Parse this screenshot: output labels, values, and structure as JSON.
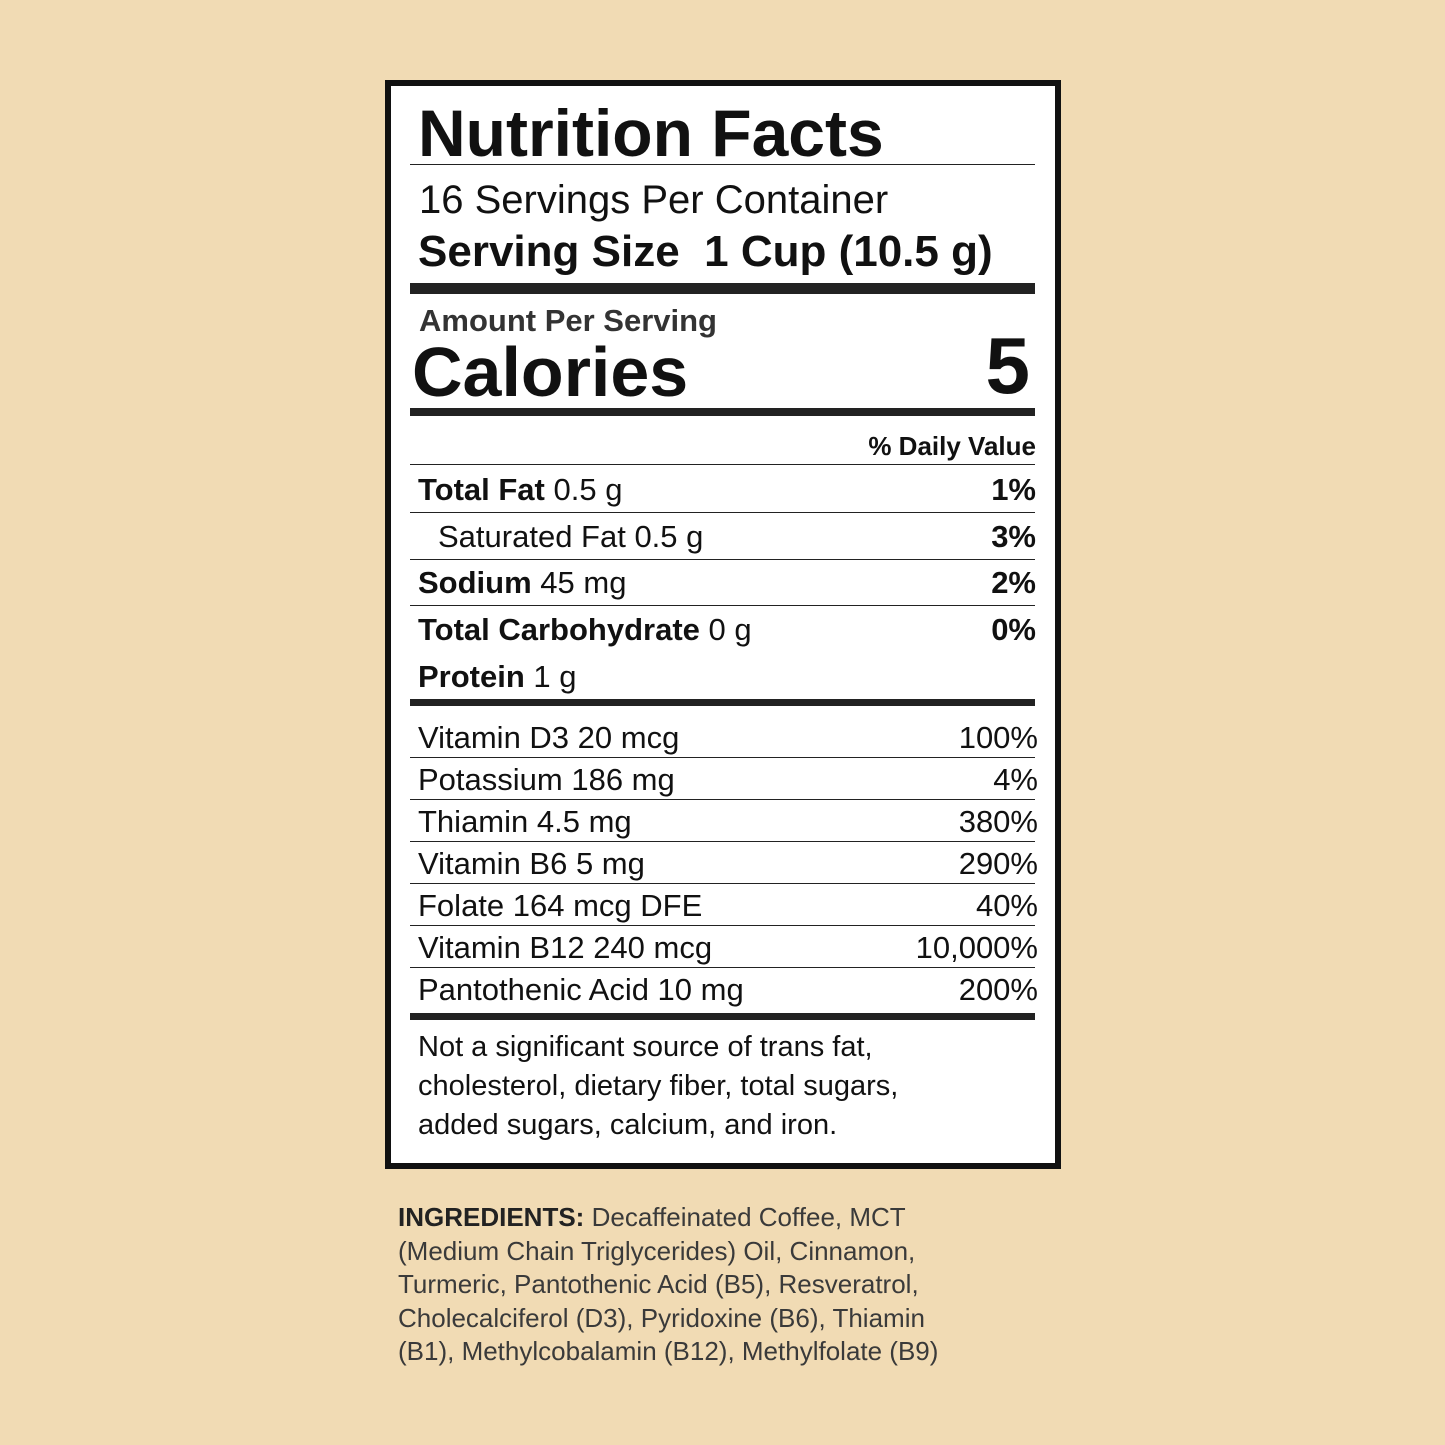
{
  "label": {
    "title": "Nutrition Facts",
    "servings_per_container": "16 Servings Per Container",
    "serving_size": {
      "label": "Serving Size",
      "value": "1 Cup (10.5 g)"
    },
    "amount_per_serving": "Amount Per Serving",
    "calories": {
      "label": "Calories",
      "value": "5"
    },
    "daily_value_header": "% Daily Value",
    "nutrients": [
      {
        "name": "Total Fat",
        "amount": "0.5 g",
        "dv": "1%"
      },
      {
        "name": "Saturated Fat 0.5 g",
        "dv": "3%"
      },
      {
        "name": "Sodium",
        "amount": "45 mg",
        "dv": "2%"
      },
      {
        "name": "Total Carbohydrate",
        "amount": "0 g",
        "dv": "0%"
      },
      {
        "name": "Protein",
        "amount": "1 g"
      }
    ],
    "vitamins": [
      {
        "name": "Vitamin D3 20 mcg",
        "dv": "100%"
      },
      {
        "name": "Potassium 186 mg",
        "dv": "4%"
      },
      {
        "name": "Thiamin 4.5 mg",
        "dv": "380%"
      },
      {
        "name": "Vitamin B6 5 mg",
        "dv": "290%"
      },
      {
        "name": "Folate 164 mcg DFE",
        "dv": "40%"
      },
      {
        "name": "Vitamin B12 240 mcg",
        "dv": "10,000%"
      },
      {
        "name": "Pantothenic Acid 10 mg",
        "dv": "200%"
      }
    ],
    "footnote": [
      "Not a significant source of trans fat,",
      "cholesterol, dietary fiber, total sugars,",
      "added sugars, calcium, and iron."
    ]
  },
  "ingredients": {
    "label": "INGREDIENTS:",
    "lines": [
      "Decaffeinated Coffee, MCT",
      "(Medium Chain Triglycerides) Oil, Cinnamon,",
      "Turmeric, Pantothenic Acid (B5), Resveratrol,",
      "Cholecalciferol (D3), Pyridoxine (B6), Thiamin",
      "(B1), Methylcobalamin (B12), Methylfolate (B9)"
    ]
  }
}
